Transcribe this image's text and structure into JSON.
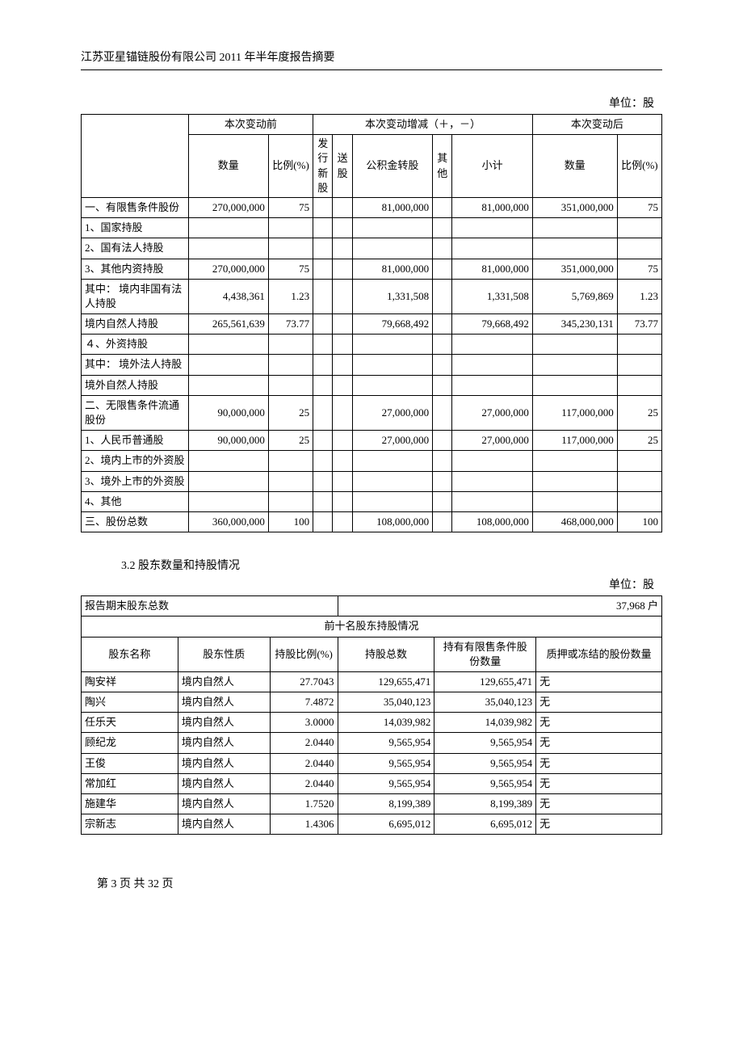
{
  "header": "江苏亚星锚链股份有限公司 2011 年半年度报告摘要",
  "unit_label": "单位：股",
  "table1": {
    "headgroup": {
      "before": "本次变动前",
      "change": "本次变动增减（＋，－）",
      "after": "本次变动后"
    },
    "headers": {
      "qty": "数量",
      "pct": "比例(%)",
      "issue_new": "发行新股",
      "bonus": "送股",
      "reserve": "公积金转股",
      "other": "其他",
      "subtotal": "小计",
      "qty2": "数量",
      "pct2": "比例(%)"
    },
    "rows": [
      {
        "label": "一、有限售条件股份",
        "qty": "270,000,000",
        "pct": "75",
        "issue": "",
        "bonus": "",
        "reserve": "81,000,000",
        "other": "",
        "sub": "81,000,000",
        "qty2": "351,000,000",
        "pct2": "75"
      },
      {
        "label": "1、国家持股",
        "qty": "",
        "pct": "",
        "issue": "",
        "bonus": "",
        "reserve": "",
        "other": "",
        "sub": "",
        "qty2": "",
        "pct2": ""
      },
      {
        "label": "2、国有法人持股",
        "qty": "",
        "pct": "",
        "issue": "",
        "bonus": "",
        "reserve": "",
        "other": "",
        "sub": "",
        "qty2": "",
        "pct2": ""
      },
      {
        "label": "3、其他内资持股",
        "qty": "270,000,000",
        "pct": "75",
        "issue": "",
        "bonus": "",
        "reserve": "81,000,000",
        "other": "",
        "sub": "81,000,000",
        "qty2": "351,000,000",
        "pct2": "75"
      },
      {
        "label": "其中： 境内非国有法人持股",
        "qty": "4,438,361",
        "pct": "1.23",
        "issue": "",
        "bonus": "",
        "reserve": "1,331,508",
        "other": "",
        "sub": "1,331,508",
        "qty2": "5,769,869",
        "pct2": "1.23"
      },
      {
        "label": "境内自然人持股",
        "qty": "265,561,639",
        "pct": "73.77",
        "issue": "",
        "bonus": "",
        "reserve": "79,668,492",
        "other": "",
        "sub": "79,668,492",
        "qty2": "345,230,131",
        "pct2": "73.77"
      },
      {
        "label": "４、外资持股",
        "qty": "",
        "pct": "",
        "issue": "",
        "bonus": "",
        "reserve": "",
        "other": "",
        "sub": "",
        "qty2": "",
        "pct2": ""
      },
      {
        "label": "其中： 境外法人持股",
        "qty": "",
        "pct": "",
        "issue": "",
        "bonus": "",
        "reserve": "",
        "other": "",
        "sub": "",
        "qty2": "",
        "pct2": ""
      },
      {
        "label": "境外自然人持股",
        "qty": "",
        "pct": "",
        "issue": "",
        "bonus": "",
        "reserve": "",
        "other": "",
        "sub": "",
        "qty2": "",
        "pct2": ""
      },
      {
        "label": "二、无限售条件流通股份",
        "qty": "90,000,000",
        "pct": "25",
        "issue": "",
        "bonus": "",
        "reserve": "27,000,000",
        "other": "",
        "sub": "27,000,000",
        "qty2": "117,000,000",
        "pct2": "25"
      },
      {
        "label": "1、人民币普通股",
        "qty": "90,000,000",
        "pct": "25",
        "issue": "",
        "bonus": "",
        "reserve": "27,000,000",
        "other": "",
        "sub": "27,000,000",
        "qty2": "117,000,000",
        "pct2": "25"
      },
      {
        "label": "2、境内上市的外资股",
        "qty": "",
        "pct": "",
        "issue": "",
        "bonus": "",
        "reserve": "",
        "other": "",
        "sub": "",
        "qty2": "",
        "pct2": ""
      },
      {
        "label": "3、境外上市的外资股",
        "qty": "",
        "pct": "",
        "issue": "",
        "bonus": "",
        "reserve": "",
        "other": "",
        "sub": "",
        "qty2": "",
        "pct2": ""
      },
      {
        "label": "4、其他",
        "qty": "",
        "pct": "",
        "issue": "",
        "bonus": "",
        "reserve": "",
        "other": "",
        "sub": "",
        "qty2": "",
        "pct2": ""
      },
      {
        "label": "三、股份总数",
        "qty": "360,000,000",
        "pct": "100",
        "issue": "",
        "bonus": "",
        "reserve": "108,000,000",
        "other": "",
        "sub": "108,000,000",
        "qty2": "468,000,000",
        "pct2": "100"
      }
    ]
  },
  "section_title": "3.2 股东数量和持股情况",
  "table2": {
    "total_label": "报告期末股东总数",
    "total_value": "37,968 户",
    "top10_title": "前十名股东持股情况",
    "headers": {
      "name": "股东名称",
      "nature": "股东性质",
      "pct": "持股比例(%)",
      "total": "持股总数",
      "restricted": "持有有限售条件股份数量",
      "pledge": "质押或冻结的股份数量"
    },
    "rows": [
      {
        "name": "陶安祥",
        "nature": "境内自然人",
        "pct": "27.7043",
        "total": "129,655,471",
        "restricted": "129,655,471",
        "pledge": "无"
      },
      {
        "name": "陶兴",
        "nature": "境内自然人",
        "pct": "7.4872",
        "total": "35,040,123",
        "restricted": "35,040,123",
        "pledge": "无"
      },
      {
        "name": "任乐天",
        "nature": "境内自然人",
        "pct": "3.0000",
        "total": "14,039,982",
        "restricted": "14,039,982",
        "pledge": "无"
      },
      {
        "name": "顾纪龙",
        "nature": "境内自然人",
        "pct": "2.0440",
        "total": "9,565,954",
        "restricted": "9,565,954",
        "pledge": "无"
      },
      {
        "name": "王俊",
        "nature": "境内自然人",
        "pct": "2.0440",
        "total": "9,565,954",
        "restricted": "9,565,954",
        "pledge": "无"
      },
      {
        "name": "常加红",
        "nature": "境内自然人",
        "pct": "2.0440",
        "total": "9,565,954",
        "restricted": "9,565,954",
        "pledge": "无"
      },
      {
        "name": "施建华",
        "nature": "境内自然人",
        "pct": "1.7520",
        "total": "8,199,389",
        "restricted": "8,199,389",
        "pledge": "无"
      },
      {
        "name": "宗新志",
        "nature": "境内自然人",
        "pct": "1.4306",
        "total": "6,695,012",
        "restricted": "6,695,012",
        "pledge": "无"
      }
    ]
  },
  "footer": "第 3 页 共 32 页"
}
